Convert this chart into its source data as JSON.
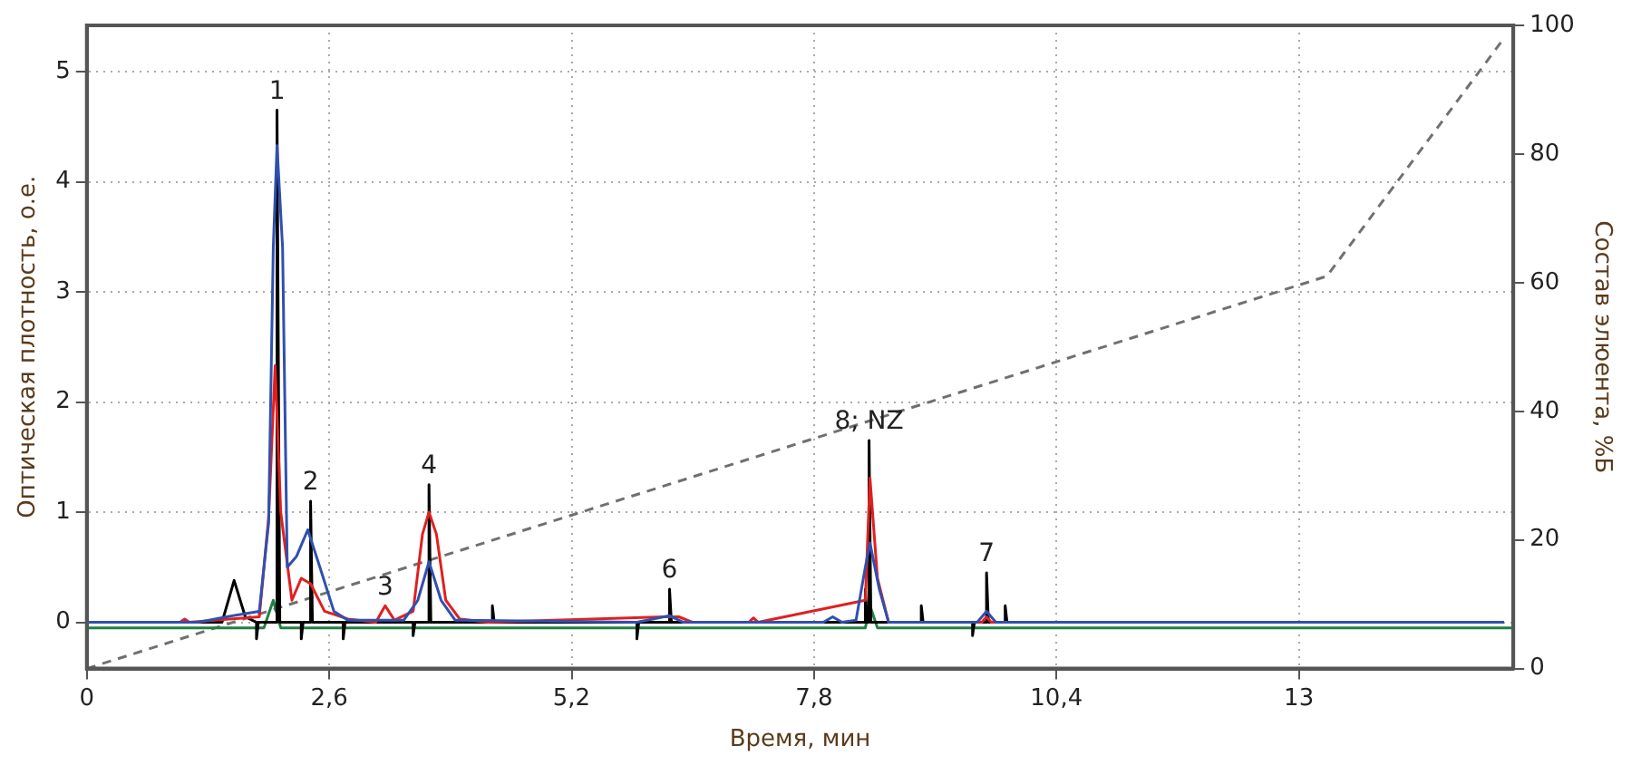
{
  "chart_data": {
    "type": "line",
    "xlabel": "Время, мин",
    "ylabel": "Оптическая плотность, о.е.",
    "y2label": "Состав элюента, %Б",
    "xlim": [
      0,
      15.3
    ],
    "xticks": [
      0,
      {
        "value": 2.6,
        "label": "2,6"
      },
      {
        "value": 5.2,
        "label": "5,2"
      },
      {
        "value": 7.8,
        "label": "7,8"
      },
      {
        "value": 10.4,
        "label": "10,4"
      },
      13
    ],
    "ylim": [
      -0.42,
      5.42
    ],
    "yticks": [
      0,
      1,
      2,
      3,
      4,
      5
    ],
    "y2lim": [
      0,
      100
    ],
    "y2ticks": [
      0,
      20,
      40,
      60,
      80,
      100
    ],
    "grid": true,
    "marker": "none",
    "series": [
      {
        "color": "#3050b0",
        "x": [
          0,
          1.2,
          1.5,
          1.85,
          1.95,
          2.0,
          2.04,
          2.1,
          2.15,
          2.25,
          2.37,
          2.5,
          2.65,
          2.8,
          3.4,
          3.55,
          3.67,
          3.8,
          3.95,
          5.9,
          6.25,
          6.4,
          7.9,
          8.0,
          8.1,
          8.25,
          8.35,
          8.4,
          8.5,
          8.6,
          9.55,
          9.65,
          9.75,
          15.2
        ],
        "values": [
          0,
          0,
          0.05,
          0.1,
          0.9,
          3.4,
          4.33,
          3.4,
          0.5,
          0.6,
          0.84,
          0.5,
          0.1,
          0.02,
          0.02,
          0.2,
          0.55,
          0.2,
          0.02,
          0,
          0.06,
          0,
          0,
          0.05,
          0,
          0.02,
          0.5,
          0.72,
          0.3,
          0,
          0,
          0.1,
          0,
          0
        ]
      },
      {
        "color": "#e02020",
        "x": [
          0,
          1.0,
          1.05,
          1.1,
          1.85,
          1.95,
          2.02,
          2.08,
          2.2,
          2.3,
          2.4,
          2.55,
          2.8,
          3.1,
          3.2,
          3.3,
          3.5,
          3.6,
          3.67,
          3.75,
          3.85,
          4.0,
          4.3,
          6.2,
          6.35,
          6.5,
          7.1,
          7.15,
          7.2,
          8.35,
          8.4,
          8.48,
          8.6,
          9.6,
          9.65,
          9.7,
          15.2
        ],
        "values": [
          0,
          0,
          0.03,
          0,
          0.05,
          0.95,
          2.33,
          1.0,
          0.2,
          0.4,
          0.35,
          0.1,
          0.03,
          0,
          0.15,
          0.02,
          0.1,
          0.8,
          1.0,
          0.8,
          0.2,
          0.03,
          0,
          0.05,
          0.05,
          0,
          0,
          0.04,
          0,
          0.2,
          1.31,
          0.4,
          0,
          0,
          0.05,
          0,
          0
        ]
      },
      {
        "color": "#000000",
        "x": [
          0,
          1.45,
          1.58,
          1.7,
          1.82,
          1.82,
          1.84,
          2.04,
          2.04,
          2.07,
          2.3,
          2.3,
          2.32,
          2.4,
          2.4,
          2.42,
          2.75,
          2.75,
          2.77,
          3.5,
          3.5,
          3.52,
          3.67,
          3.67,
          3.69,
          4.35,
          4.35,
          4.37,
          5.9,
          5.9,
          5.92,
          6.25,
          6.25,
          6.27,
          8.35,
          8.35,
          8.37,
          8.39,
          8.39,
          8.41,
          8.95,
          8.95,
          8.97,
          9.5,
          9.5,
          9.52,
          9.65,
          9.65,
          9.67,
          9.85,
          9.85,
          9.87,
          15.2
        ],
        "values": [
          0,
          0,
          0.38,
          0.05,
          0,
          -0.15,
          0,
          0,
          4.65,
          0,
          0,
          -0.15,
          0,
          0,
          1.1,
          0,
          0,
          -0.15,
          0,
          0,
          -0.12,
          0,
          0,
          1.25,
          0,
          0,
          0.15,
          0,
          0,
          -0.15,
          0,
          0,
          0.3,
          0,
          0,
          0.3,
          0,
          0,
          1.65,
          0,
          0,
          0.15,
          0,
          0,
          -0.12,
          0,
          0,
          0.45,
          0,
          0,
          0.15,
          0,
          0
        ]
      },
      {
        "color": "#208040",
        "x": [
          0,
          1.9,
          2.0,
          2.08,
          8.35,
          8.4,
          8.48,
          15.3
        ],
        "values": [
          -0.05,
          -0.05,
          0.2,
          -0.05,
          -0.05,
          0.15,
          -0.05,
          -0.05
        ]
      },
      {
        "color": "#707070",
        "axis": "y2",
        "line_style": "dashed",
        "x": [
          0,
          13.3,
          15.2
        ],
        "values": [
          0,
          61,
          98
        ]
      }
    ],
    "annotations": [
      {
        "text": "1",
        "x": 2.04,
        "y": 4.65
      },
      {
        "text": "2",
        "x": 2.4,
        "y": 1.1
      },
      {
        "text": "3",
        "x": 3.2,
        "y": 0.15
      },
      {
        "text": "4",
        "x": 3.67,
        "y": 1.25
      },
      {
        "text": "6",
        "x": 6.25,
        "y": 0.3
      },
      {
        "text": "8; NZ",
        "x": 8.39,
        "y": 1.65
      },
      {
        "text": "7",
        "x": 9.65,
        "y": 0.45
      }
    ]
  }
}
